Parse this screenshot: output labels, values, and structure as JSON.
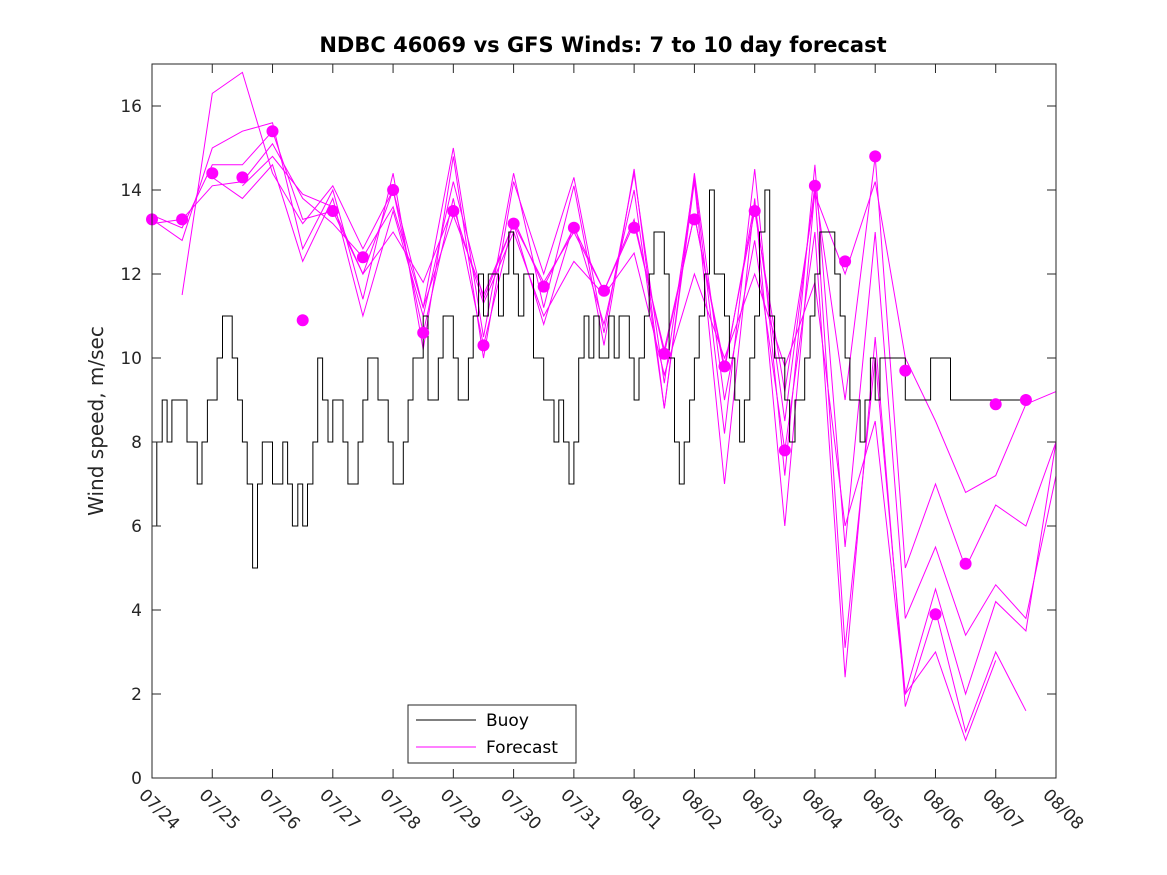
{
  "chart_data": {
    "type": "line",
    "title": "NDBC 46069 vs GFS Winds: 7 to 10 day forecast",
    "ylabel": "Wind speed, m/sec",
    "xlabel": "",
    "xlim": [
      0,
      15
    ],
    "ylim": [
      0,
      17
    ],
    "x_tick_labels": [
      "07/24",
      "07/25",
      "07/26",
      "07/27",
      "07/28",
      "07/29",
      "07/30",
      "07/31",
      "08/01",
      "08/02",
      "08/03",
      "08/04",
      "08/05",
      "08/06",
      "08/07",
      "08/08"
    ],
    "y_ticks": [
      0,
      2,
      4,
      6,
      8,
      10,
      12,
      14,
      16
    ],
    "legend": {
      "position": "bottom-center",
      "entries": [
        "Buoy",
        "Forecast"
      ]
    },
    "colors": {
      "buoy": "#000000",
      "forecast": "#ff00ff"
    },
    "buoy": {
      "name": "Buoy",
      "x": [
        0,
        0.08,
        0.17,
        0.25,
        0.33,
        0.42,
        0.5,
        0.58,
        0.67,
        0.75,
        0.83,
        0.92,
        1.0,
        1.08,
        1.17,
        1.25,
        1.33,
        1.42,
        1.5,
        1.58,
        1.67,
        1.75,
        1.83,
        1.92,
        2.0,
        2.08,
        2.17,
        2.25,
        2.33,
        2.42,
        2.5,
        2.58,
        2.67,
        2.75,
        2.83,
        2.92,
        3.0,
        3.08,
        3.17,
        3.25,
        3.33,
        3.42,
        3.5,
        3.58,
        3.67,
        3.75,
        3.83,
        3.92,
        4.0,
        4.08,
        4.17,
        4.25,
        4.33,
        4.42,
        4.5,
        4.58,
        4.67,
        4.75,
        4.83,
        4.92,
        5.0,
        5.08,
        5.17,
        5.25,
        5.33,
        5.42,
        5.5,
        5.58,
        5.67,
        5.75,
        5.83,
        5.92,
        6.0,
        6.08,
        6.17,
        6.25,
        6.33,
        6.42,
        6.5,
        6.58,
        6.67,
        6.75,
        6.83,
        6.92,
        7.0,
        7.08,
        7.17,
        7.25,
        7.33,
        7.42,
        7.5,
        7.58,
        7.67,
        7.75,
        7.83,
        7.92,
        8.0,
        8.08,
        8.17,
        8.25,
        8.33,
        8.42,
        8.5,
        8.58,
        8.67,
        8.75,
        8.83,
        8.92,
        9.0,
        9.08,
        9.17,
        9.25,
        9.33,
        9.42,
        9.5,
        9.58,
        9.67,
        9.75,
        9.83,
        9.92,
        10.0,
        10.08,
        10.17,
        10.25,
        10.33,
        10.42,
        10.5,
        10.58,
        10.67,
        10.75,
        10.83,
        10.92,
        11.0,
        11.08,
        11.17,
        11.25,
        11.33,
        11.42,
        11.5,
        11.58,
        11.67,
        11.75,
        11.83,
        11.92,
        12.0,
        12.08,
        12.17,
        12.25,
        12.33,
        12.42,
        12.5,
        12.58,
        12.67,
        12.75,
        12.83,
        12.92,
        13.0,
        13.08,
        13.17,
        13.25,
        13.33,
        13.42,
        13.5,
        13.58,
        13.67,
        13.75,
        13.83,
        13.92,
        14.0,
        14.08,
        14.17,
        14.25,
        14.33,
        14.42,
        14.5
      ],
      "y": [
        6,
        8,
        9,
        8,
        9,
        9,
        9,
        8,
        8,
        7,
        8,
        9,
        9,
        10,
        11,
        11,
        10,
        9,
        8,
        7,
        5,
        7,
        8,
        8,
        7,
        7,
        8,
        7,
        6,
        7,
        6,
        7,
        8,
        10,
        9,
        8,
        9,
        9,
        8,
        7,
        7,
        8,
        9,
        10,
        10,
        9,
        9,
        8,
        7,
        7,
        8,
        9,
        10,
        10,
        11,
        9,
        9,
        10,
        11,
        11,
        10,
        9,
        9,
        10,
        11,
        12,
        11,
        12,
        12,
        11,
        12,
        13,
        12,
        11,
        12,
        12,
        10,
        10,
        9,
        9,
        8,
        9,
        8,
        7,
        8,
        10,
        11,
        10,
        11,
        10,
        10,
        11,
        10,
        11,
        11,
        10,
        9,
        10,
        11,
        12,
        13,
        13,
        12,
        10,
        8,
        7,
        8,
        9,
        10,
        11,
        12,
        14,
        12,
        12,
        11,
        10,
        9,
        8,
        9,
        10,
        11,
        13,
        14,
        11,
        10,
        10,
        9,
        8,
        9,
        9,
        10,
        11,
        12,
        13,
        13,
        13,
        12,
        11,
        10,
        9,
        9,
        8,
        9,
        10,
        9,
        10,
        10,
        10,
        10,
        10,
        9,
        9,
        9,
        9,
        9,
        10,
        10,
        10,
        10,
        9,
        9,
        9,
        9,
        9,
        9,
        9,
        9,
        9,
        9,
        9,
        9,
        9,
        9,
        9,
        9
      ]
    },
    "forecast": {
      "name": "Forecast",
      "series": [
        {
          "x": [
            0,
            0.5,
            1.0,
            1.5,
            2.0,
            2.5,
            3.0,
            3.5,
            4.0,
            4.5,
            5.0,
            5.5,
            6.0,
            6.5,
            7.0,
            7.5,
            8.0,
            8.5,
            9.0,
            9.5,
            10.0,
            10.5,
            11.0,
            11.5,
            12.0,
            12.5,
            13.0,
            13.5,
            14.0,
            14.5,
            15.0
          ],
          "y": [
            13.2,
            13.3,
            14.1,
            14.2,
            15.1,
            13.8,
            13.2,
            12.4,
            13.6,
            11.2,
            13.4,
            11.5,
            13.2,
            11.8,
            13.0,
            11.6,
            13.2,
            10.2,
            13.4,
            9.8,
            13.5,
            9.2,
            13.9,
            12.0,
            14.2,
            10.0,
            8.5,
            6.8,
            7.2,
            8.9,
            9.2
          ]
        },
        {
          "x": [
            0,
            0.5,
            1.0,
            1.5,
            2.0,
            2.5,
            3.0,
            3.5,
            4.0,
            4.5,
            5.0,
            5.5,
            6.0,
            6.5,
            7.0,
            7.5,
            8.0,
            8.5,
            9.0,
            9.5,
            10.0,
            10.5,
            11.0,
            11.5,
            12.0,
            12.5,
            13.0,
            13.5,
            14.0,
            14.5,
            15.0
          ],
          "y": [
            13.4,
            13.1,
            14.6,
            14.6,
            15.4,
            13.3,
            13.5,
            12.0,
            14.0,
            10.6,
            13.8,
            10.3,
            13.3,
            11.7,
            13.1,
            11.6,
            13.3,
            10.1,
            13.4,
            9.7,
            13.7,
            8.5,
            14.1,
            9.0,
            14.8,
            5.0,
            7.0,
            5.0,
            6.5,
            6.0,
            8.0
          ]
        },
        {
          "x": [
            0,
            0.5,
            1.0,
            1.5,
            2.0,
            2.5,
            3.0,
            3.5,
            4.0,
            4.5,
            5.0,
            5.5,
            6.0,
            6.5,
            7.0,
            7.5,
            8.0,
            8.5,
            9.0,
            9.5,
            10.0,
            10.5,
            11.0,
            11.5,
            12.0,
            12.5,
            13.0,
            13.5,
            14.0,
            14.5,
            15.0
          ],
          "y": [
            13.3,
            12.8,
            15.0,
            15.4,
            15.6,
            12.6,
            14.0,
            11.4,
            14.4,
            10.2,
            14.8,
            10.0,
            14.2,
            12.0,
            14.3,
            10.6,
            14.4,
            9.4,
            14.3,
            8.2,
            14.5,
            7.2,
            14.6,
            5.5,
            13.0,
            3.8,
            5.5,
            3.4,
            4.6,
            3.8,
            7.2
          ]
        },
        {
          "x": [
            0.5,
            1.0,
            1.5,
            2.0,
            2.5,
            3.0,
            3.5,
            4.0,
            4.5,
            5.0,
            5.5,
            6.0,
            6.5,
            7.0,
            7.5,
            8.0,
            8.5,
            9.0,
            9.5,
            10.0,
            10.5,
            11.0,
            11.5,
            12.0,
            12.5,
            13.0,
            13.5,
            14.0,
            14.5,
            15.0
          ],
          "y": [
            11.5,
            16.3,
            16.8,
            14.4,
            13.2,
            14.1,
            12.6,
            14.0,
            11.2,
            15.0,
            10.5,
            14.4,
            11.2,
            14.1,
            10.3,
            14.5,
            8.8,
            14.2,
            7.0,
            13.8,
            6.0,
            14.0,
            3.1,
            10.0,
            2.0,
            4.5,
            2.0,
            4.2,
            3.5,
            8.0
          ]
        },
        {
          "x": [
            1.0,
            1.5,
            2.0,
            2.5,
            3.0,
            3.5,
            4.0,
            4.5,
            5.0,
            5.5,
            6.0,
            6.5,
            7.0,
            7.5,
            8.0,
            8.5,
            9.0,
            9.5,
            10.0,
            10.5,
            11.0,
            11.5,
            12.0,
            12.5,
            13.0,
            13.5,
            14.0,
            14.5
          ],
          "y": [
            14.3,
            13.8,
            14.6,
            12.3,
            13.8,
            11.0,
            13.5,
            11.0,
            14.2,
            11.4,
            13.2,
            10.8,
            13.2,
            10.8,
            14.0,
            8.8,
            14.4,
            9.0,
            12.8,
            7.8,
            13.0,
            2.4,
            10.5,
            1.7,
            4.0,
            1.1,
            3.0,
            1.6
          ]
        },
        {
          "x": [
            1.5,
            2.0,
            2.5,
            3.0,
            3.5,
            4.0,
            4.5,
            5.0,
            5.5,
            6.0,
            6.5,
            7.0,
            7.5,
            8.0,
            8.5,
            9.0,
            9.5,
            10.0,
            10.5,
            11.0,
            11.5,
            12.0,
            12.5,
            13.0,
            13.5,
            14.0
          ],
          "y": [
            14.1,
            14.8,
            13.9,
            13.6,
            12.0,
            13.0,
            11.8,
            13.6,
            11.3,
            13.0,
            11.0,
            12.3,
            11.5,
            12.5,
            9.6,
            12.0,
            10.0,
            12.0,
            9.8,
            11.8,
            6.0,
            8.5,
            2.0,
            3.0,
            0.9,
            2.8
          ]
        }
      ],
      "markers": {
        "x": [
          0,
          0.5,
          1.0,
          1.5,
          2.0,
          2.5,
          3.0,
          3.5,
          4.0,
          4.5,
          5.0,
          5.5,
          6.0,
          6.5,
          7.0,
          7.5,
          8.0,
          8.5,
          9.0,
          9.5,
          10.0,
          10.5,
          11.0,
          11.5,
          12.0,
          12.5,
          13.0,
          13.5,
          14.0,
          14.5
        ],
        "y": [
          13.3,
          13.3,
          14.4,
          14.3,
          15.4,
          10.9,
          13.5,
          12.4,
          14.0,
          10.6,
          13.5,
          10.3,
          13.2,
          11.7,
          13.1,
          11.6,
          13.1,
          10.1,
          13.3,
          9.8,
          13.5,
          7.8,
          14.1,
          12.3,
          14.8,
          9.7,
          3.9,
          5.1,
          8.9,
          9.0
        ]
      }
    }
  }
}
